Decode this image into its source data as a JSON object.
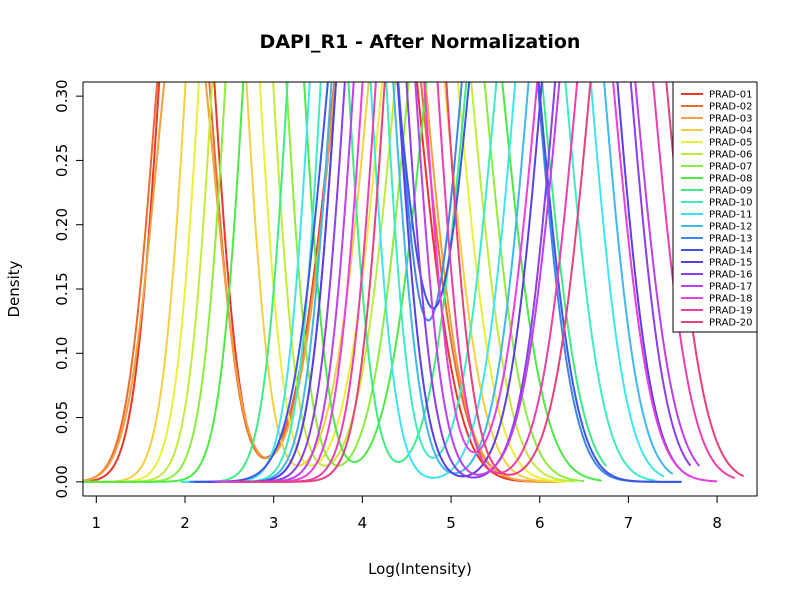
{
  "chart_data": {
    "type": "line",
    "title": "DAPI_R1 - After Normalization",
    "xlabel": "Log(Intensity)",
    "ylabel": "Density",
    "xlim": [
      0.85,
      8.45
    ],
    "ylim": [
      -0.011,
      0.311
    ],
    "x_ticks": [
      1,
      2,
      3,
      4,
      5,
      6,
      7,
      8
    ],
    "x_tick_labels": [
      "1",
      "2",
      "3",
      "4",
      "5",
      "6",
      "7",
      "8"
    ],
    "y_ticks": [
      0.0,
      0.05,
      0.1,
      0.15,
      0.2,
      0.25,
      0.3
    ],
    "y_tick_labels": [
      "0.00",
      "0.05",
      "0.10",
      "0.15",
      "0.20",
      "0.25",
      "0.30"
    ],
    "grid": false,
    "legend_position": "top-right",
    "series": [
      {
        "name": "PRAD-01",
        "color": "#E8362A",
        "range": [
          0.85,
          6.2
        ],
        "components": [
          {
            "w": 0.4,
            "mu": 2.02,
            "sd": 0.3
          },
          {
            "w": 0.6,
            "mu": 4.15,
            "sd": 0.45
          }
        ]
      },
      {
        "name": "PRAD-02",
        "color": "#EE6A2E",
        "range": [
          0.85,
          6.2
        ],
        "components": [
          {
            "w": 0.38,
            "mu": 1.98,
            "sd": 0.32
          },
          {
            "w": 0.62,
            "mu": 4.18,
            "sd": 0.46
          }
        ]
      },
      {
        "name": "PRAD-03",
        "color": "#F2A03A",
        "range": [
          0.85,
          6.2
        ],
        "components": [
          {
            "w": 0.33,
            "mu": 2.0,
            "sd": 0.33
          },
          {
            "w": 0.67,
            "mu": 4.2,
            "sd": 0.45
          }
        ]
      },
      {
        "name": "PRAD-04",
        "color": "#F4CF3E",
        "range": [
          0.85,
          6.3
        ],
        "components": [
          {
            "w": 0.45,
            "mu": 2.35,
            "sd": 0.3
          },
          {
            "w": 0.55,
            "mu": 4.5,
            "sd": 0.42
          }
        ]
      },
      {
        "name": "PRAD-05",
        "color": "#ECEE3A",
        "range": [
          0.85,
          6.3
        ],
        "components": [
          {
            "w": 0.45,
            "mu": 2.5,
            "sd": 0.3
          },
          {
            "w": 0.55,
            "mu": 4.65,
            "sd": 0.42
          }
        ]
      },
      {
        "name": "PRAD-06",
        "color": "#C2EC3C",
        "range": [
          0.85,
          6.4
        ],
        "components": [
          {
            "w": 0.45,
            "mu": 2.65,
            "sd": 0.3
          },
          {
            "w": 0.55,
            "mu": 4.8,
            "sd": 0.42
          }
        ]
      },
      {
        "name": "PRAD-07",
        "color": "#8EEC3E",
        "range": [
          0.85,
          6.5
        ],
        "components": [
          {
            "w": 0.45,
            "mu": 2.8,
            "sd": 0.3
          },
          {
            "w": 0.55,
            "mu": 4.95,
            "sd": 0.42
          }
        ]
      },
      {
        "name": "PRAD-08",
        "color": "#4DEA45",
        "range": [
          0.85,
          6.7
        ],
        "components": [
          {
            "w": 0.45,
            "mu": 3.0,
            "sd": 0.3
          },
          {
            "w": 0.55,
            "mu": 5.15,
            "sd": 0.44
          }
        ]
      },
      {
        "name": "PRAD-09",
        "color": "#3EEC86",
        "range": [
          1.95,
          6.75
        ],
        "components": [
          {
            "w": 0.45,
            "mu": 3.5,
            "sd": 0.3
          },
          {
            "w": 0.55,
            "mu": 5.6,
            "sd": 0.42
          }
        ]
      },
      {
        "name": "PRAD-10",
        "color": "#3EEBC2",
        "range": [
          1.95,
          7.3
        ],
        "components": [
          {
            "w": 0.5,
            "mu": 3.9,
            "sd": 0.3
          },
          {
            "w": 0.5,
            "mu": 5.9,
            "sd": 0.4
          }
        ]
      },
      {
        "name": "PRAD-11",
        "color": "#3FE5EE",
        "range": [
          2.0,
          7.4
        ],
        "components": [
          {
            "w": 0.45,
            "mu": 3.75,
            "sd": 0.3
          },
          {
            "w": 0.55,
            "mu": 6.15,
            "sd": 0.4
          }
        ]
      },
      {
        "name": "PRAD-12",
        "color": "#3FB8EE",
        "range": [
          2.05,
          7.5
        ],
        "components": [
          {
            "w": 0.45,
            "mu": 4.0,
            "sd": 0.32
          },
          {
            "w": 0.55,
            "mu": 6.3,
            "sd": 0.4
          }
        ]
      },
      {
        "name": "PRAD-13",
        "color": "#3F86EC",
        "range": [
          2.05,
          7.6
        ],
        "components": [
          {
            "w": 0.45,
            "mu": 4.05,
            "sd": 0.32
          },
          {
            "w": 0.55,
            "mu": 5.55,
            "sd": 0.4
          }
        ]
      },
      {
        "name": "PRAD-14",
        "color": "#3F55E8",
        "range": [
          2.1,
          7.6
        ],
        "components": [
          {
            "w": 0.5,
            "mu": 4.0,
            "sd": 0.4
          },
          {
            "w": 0.5,
            "mu": 5.6,
            "sd": 0.4
          }
        ]
      },
      {
        "name": "PRAD-15",
        "color": "#5A3FE8",
        "range": [
          2.25,
          7.7
        ],
        "components": [
          {
            "w": 0.45,
            "mu": 4.05,
            "sd": 0.32
          },
          {
            "w": 0.55,
            "mu": 6.45,
            "sd": 0.4
          }
        ]
      },
      {
        "name": "PRAD-16",
        "color": "#8A3FEA",
        "range": [
          2.3,
          7.7
        ],
        "components": [
          {
            "w": 0.45,
            "mu": 4.15,
            "sd": 0.32
          },
          {
            "w": 0.55,
            "mu": 6.6,
            "sd": 0.4
          }
        ]
      },
      {
        "name": "PRAD-17",
        "color": "#BE3FEC",
        "range": [
          2.35,
          7.8
        ],
        "components": [
          {
            "w": 0.45,
            "mu": 4.25,
            "sd": 0.32
          },
          {
            "w": 0.55,
            "mu": 6.65,
            "sd": 0.42
          }
        ]
      },
      {
        "name": "PRAD-18",
        "color": "#EA3FE0",
        "range": [
          2.4,
          8.0
        ],
        "components": [
          {
            "w": 0.45,
            "mu": 4.35,
            "sd": 0.32
          },
          {
            "w": 0.55,
            "mu": 6.4,
            "sd": 0.42
          }
        ]
      },
      {
        "name": "PRAD-19",
        "color": "#EC3FAE",
        "range": [
          2.5,
          8.2
        ],
        "components": [
          {
            "w": 0.45,
            "mu": 4.5,
            "sd": 0.32
          },
          {
            "w": 0.55,
            "mu": 6.85,
            "sd": 0.42
          }
        ]
      },
      {
        "name": "PRAD-20",
        "color": "#E83F7E",
        "range": [
          2.6,
          8.3
        ],
        "components": [
          {
            "w": 0.45,
            "mu": 4.6,
            "sd": 0.32
          },
          {
            "w": 0.55,
            "mu": 7.0,
            "sd": 0.42
          }
        ]
      }
    ]
  }
}
